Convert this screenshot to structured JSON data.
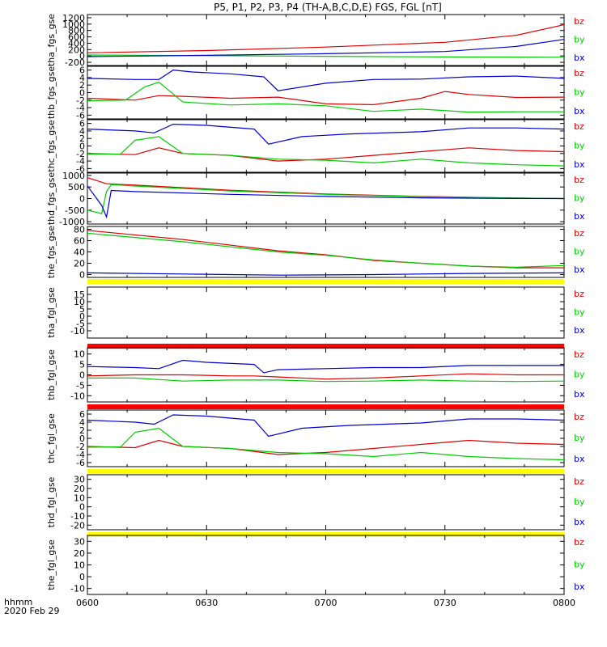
{
  "chart_data": {
    "type": "line",
    "title": "P5, P1, P2, P3, P4 (TH-A,B,C,D,E) FGS, FGL [nT]",
    "x_ticks": [
      "0600",
      "0630",
      "0700",
      "0730",
      "0800"
    ],
    "x_label_left": "hhmm",
    "date_label": "2020 Feb 29",
    "xlim": [
      "06:00",
      "08:00"
    ],
    "legend_colors": {
      "bz": "#dd0000",
      "by": "#00cc00",
      "bx": "#0000cc"
    },
    "panels": [
      {
        "ylabel": "tha_fgs_gse",
        "ylim": [
          -300,
          1300
        ],
        "y_ticks": [
          "1200",
          "1000",
          "800",
          "600",
          "400",
          "200",
          "0",
          "-200"
        ],
        "legend": [
          "bz",
          "by",
          "bx"
        ],
        "flag_bar": null,
        "series": [
          {
            "name": "bz",
            "color": "#dd0000",
            "x": [
              0,
              0.25,
              0.5,
              0.75,
              0.9,
              1.0
            ],
            "y": [
              100,
              170,
              280,
              430,
              650,
              980
            ]
          },
          {
            "name": "by",
            "color": "#00cc00",
            "x": [
              0,
              0.25,
              0.5,
              0.75,
              1.0
            ],
            "y": [
              30,
              10,
              -10,
              -30,
              -40
            ]
          },
          {
            "name": "bx",
            "color": "#0000cc",
            "x": [
              0,
              0.25,
              0.5,
              0.75,
              0.9,
              1.0
            ],
            "y": [
              -20,
              20,
              70,
              140,
              300,
              520
            ]
          }
        ]
      },
      {
        "ylabel": "thb_fgs_gse",
        "ylim": [
          -7,
          7
        ],
        "y_ticks": [
          "6",
          "4",
          "2",
          "0",
          "-2",
          "-4",
          "-6"
        ],
        "legend": [
          "bz",
          "by",
          "bx"
        ],
        "flag_bar": null,
        "series": [
          {
            "name": "bz",
            "color": "#dd0000",
            "x": [
              0,
              0.1,
              0.15,
              0.2,
              0.3,
              0.4,
              0.5,
              0.6,
              0.7,
              0.75,
              0.8,
              0.9,
              1.0
            ],
            "y": [
              -1.5,
              -2,
              -0.8,
              -1,
              -1.5,
              -1.2,
              -3,
              -3.2,
              -1.5,
              0.3,
              -0.5,
              -1.3,
              -1.2
            ]
          },
          {
            "name": "by",
            "color": "#00cc00",
            "x": [
              0,
              0.08,
              0.12,
              0.15,
              0.2,
              0.3,
              0.4,
              0.5,
              0.6,
              0.7,
              0.8,
              0.9,
              1.0
            ],
            "y": [
              -2.2,
              -2,
              1.5,
              2.8,
              -2.5,
              -3.3,
              -3,
              -3.5,
              -5,
              -4.4,
              -5.2,
              -5.1,
              -5.1
            ]
          },
          {
            "name": "bx",
            "color": "#0000cc",
            "x": [
              0,
              0.1,
              0.15,
              0.18,
              0.22,
              0.3,
              0.37,
              0.4,
              0.5,
              0.6,
              0.7,
              0.8,
              0.9,
              1.0
            ],
            "y": [
              3.8,
              3.5,
              3.5,
              6,
              5.5,
              5,
              4.2,
              0.5,
              2.5,
              3.5,
              3.6,
              4.2,
              4.4,
              3.8
            ]
          }
        ]
      },
      {
        "ylabel": "thc_fgs_gse",
        "ylim": [
          -7,
          7
        ],
        "y_ticks": [
          "6",
          "4",
          "2",
          "0",
          "-2",
          "-4",
          "-6"
        ],
        "legend": [
          "bz",
          "by",
          "bx"
        ],
        "flag_bar": null,
        "series": [
          {
            "name": "bz",
            "color": "#dd0000",
            "x": [
              0,
              0.1,
              0.15,
              0.2,
              0.3,
              0.4,
              0.5,
              0.6,
              0.7,
              0.8,
              0.9,
              1.0
            ],
            "y": [
              -2,
              -2.3,
              -0.5,
              -2,
              -2.5,
              -4,
              -3.5,
              -2.5,
              -1.5,
              -0.5,
              -1.2,
              -1.5
            ]
          },
          {
            "name": "by",
            "color": "#00cc00",
            "x": [
              0,
              0.07,
              0.1,
              0.15,
              0.2,
              0.3,
              0.4,
              0.5,
              0.6,
              0.7,
              0.8,
              0.9,
              1.0
            ],
            "y": [
              -2.2,
              -2.1,
              1.5,
              2.5,
              -2,
              -2.5,
              -3.5,
              -3.8,
              -4.5,
              -3.5,
              -4.5,
              -5,
              -5.3
            ]
          },
          {
            "name": "bx",
            "color": "#0000cc",
            "x": [
              0,
              0.1,
              0.14,
              0.18,
              0.25,
              0.35,
              0.38,
              0.45,
              0.55,
              0.7,
              0.8,
              0.9,
              1.0
            ],
            "y": [
              4.5,
              4,
              3.5,
              5.8,
              5.5,
              4.5,
              0.5,
              2.5,
              3.2,
              3.8,
              4.8,
              4.8,
              4.5
            ]
          }
        ]
      },
      {
        "ylabel": "thd_fgs_gse",
        "ylim": [
          -1100,
          1100
        ],
        "y_ticks": [
          "1000",
          "500",
          "0",
          "-500",
          "-1000"
        ],
        "legend": [
          "bz",
          "by",
          "bx"
        ],
        "flag_bar": null,
        "series": [
          {
            "name": "bz",
            "color": "#dd0000",
            "x": [
              0,
              0.04,
              0.1,
              0.3,
              0.5,
              0.7,
              0.9,
              1.0
            ],
            "y": [
              900,
              640,
              580,
              360,
              200,
              90,
              20,
              0
            ]
          },
          {
            "name": "by",
            "color": "#00cc00",
            "x": [
              0,
              0.03,
              0.04,
              0.05,
              0.1,
              0.3,
              0.5,
              0.7,
              0.9,
              1.0
            ],
            "y": [
              -500,
              -650,
              300,
              600,
              540,
              330,
              180,
              80,
              20,
              0
            ]
          },
          {
            "name": "bx",
            "color": "#0000cc",
            "x": [
              0,
              0.03,
              0.04,
              0.05,
              0.1,
              0.3,
              0.5,
              0.7,
              0.9,
              1.0
            ],
            "y": [
              550,
              -300,
              -800,
              350,
              300,
              180,
              90,
              30,
              5,
              0
            ]
          }
        ]
      },
      {
        "ylabel": "the_fgs_gse",
        "ylim": [
          -5,
          85
        ],
        "y_ticks": [
          "80",
          "60",
          "40",
          "20",
          "0"
        ],
        "legend": [
          "bz",
          "by",
          "bx"
        ],
        "flag_bar": {
          "color": "#ffff00",
          "spans": [
            [
              0,
              1
            ]
          ]
        },
        "series": [
          {
            "name": "bz",
            "color": "#dd0000",
            "x": [
              0,
              0.2,
              0.4,
              0.5,
              0.6,
              0.7,
              0.8,
              0.9,
              1.0
            ],
            "y": [
              78,
              62,
              42,
              35,
              25,
              20,
              15,
              12,
              12
            ]
          },
          {
            "name": "by",
            "color": "#00cc00",
            "x": [
              0,
              0.2,
              0.4,
              0.5,
              0.6,
              0.7,
              0.8,
              0.9,
              1.0
            ],
            "y": [
              73,
              58,
              40,
              34,
              26,
              20,
              15,
              13,
              16
            ]
          },
          {
            "name": "bx",
            "color": "#0000cc",
            "x": [
              0,
              0.2,
              0.4,
              0.6,
              0.8,
              1.0
            ],
            "y": [
              3,
              1,
              -1,
              0,
              2,
              3
            ]
          }
        ]
      },
      {
        "ylabel": "tha_fgl_gse",
        "ylim": [
          -15,
          20
        ],
        "y_ticks": [
          "15",
          "10",
          "5",
          "0",
          "-5",
          "-10"
        ],
        "legend": [
          "bz",
          "by",
          "bx"
        ],
        "flag_bar": {
          "color": "#ff0000",
          "spans": [
            [
              0,
              1
            ]
          ]
        },
        "series": []
      },
      {
        "ylabel": "thb_fgl_gse",
        "ylim": [
          -13,
          13
        ],
        "y_ticks": [
          "10",
          "5",
          "0",
          "-5",
          "-10"
        ],
        "legend": [
          "bz",
          "by",
          "bx"
        ],
        "flag_bar": {
          "color": "#ff0000",
          "spans": [
            [
              0,
              1
            ]
          ]
        },
        "series": [
          {
            "name": "bz",
            "color": "#dd0000",
            "x": [
              0,
              0.1,
              0.2,
              0.3,
              0.35,
              0.4,
              0.5,
              0.6,
              0.7,
              0.8,
              0.9,
              1.0
            ],
            "y": [
              -0.5,
              0,
              0,
              -0.5,
              -0.5,
              -1,
              -2,
              -1.5,
              -0.5,
              0.5,
              0,
              0
            ]
          },
          {
            "name": "by",
            "color": "#00cc00",
            "x": [
              0,
              0.1,
              0.2,
              0.3,
              0.35,
              0.4,
              0.5,
              0.6,
              0.7,
              0.8,
              0.9,
              1.0
            ],
            "y": [
              -1.5,
              -1.5,
              -3,
              -2.5,
              -2.5,
              -2.5,
              -3.2,
              -3,
              -2.5,
              -3,
              -3.2,
              -3
            ]
          },
          {
            "name": "bx",
            "color": "#0000cc",
            "x": [
              0,
              0.1,
              0.15,
              0.2,
              0.25,
              0.35,
              0.37,
              0.4,
              0.5,
              0.6,
              0.7,
              0.8,
              0.9,
              1.0
            ],
            "y": [
              4,
              3.5,
              3,
              7,
              6,
              5,
              1,
              2.5,
              3,
              3.5,
              3.5,
              4.5,
              4.5,
              4.5
            ]
          }
        ]
      },
      {
        "ylabel": "thc_fgl_gse",
        "ylim": [
          -7,
          7
        ],
        "y_ticks": [
          "6",
          "4",
          "2",
          "0",
          "-2",
          "-4",
          "-6"
        ],
        "legend": [
          "bz",
          "by",
          "bx"
        ],
        "flag_bar": {
          "color": "#ffff00",
          "spans": [
            [
              0,
              1
            ]
          ]
        },
        "series": [
          {
            "name": "bz",
            "color": "#dd0000",
            "x": [
              0,
              0.1,
              0.15,
              0.2,
              0.3,
              0.4,
              0.5,
              0.6,
              0.7,
              0.8,
              0.9,
              1.0
            ],
            "y": [
              -2,
              -2.3,
              -0.5,
              -2,
              -2.5,
              -4,
              -3.5,
              -2.5,
              -1.5,
              -0.5,
              -1.2,
              -1.5
            ]
          },
          {
            "name": "by",
            "color": "#00cc00",
            "x": [
              0,
              0.07,
              0.1,
              0.15,
              0.2,
              0.3,
              0.4,
              0.5,
              0.6,
              0.7,
              0.8,
              0.9,
              1.0
            ],
            "y": [
              -2.2,
              -2.1,
              1.5,
              2.5,
              -2,
              -2.5,
              -3.5,
              -3.8,
              -4.5,
              -3.5,
              -4.5,
              -5,
              -5.3
            ]
          },
          {
            "name": "bx",
            "color": "#0000cc",
            "x": [
              0,
              0.1,
              0.14,
              0.18,
              0.25,
              0.35,
              0.38,
              0.45,
              0.55,
              0.7,
              0.8,
              0.9,
              1.0
            ],
            "y": [
              4.5,
              4,
              3.5,
              5.8,
              5.5,
              4.5,
              0.5,
              2.5,
              3.2,
              3.8,
              4.8,
              4.8,
              4.5
            ]
          }
        ]
      },
      {
        "ylabel": "thd_fgl_gse",
        "ylim": [
          -25,
          35
        ],
        "y_ticks": [
          "30",
          "20",
          "10",
          "0",
          "-10",
          "-20"
        ],
        "legend": [
          "bz",
          "by",
          "bx"
        ],
        "flag_bar": {
          "color": "#ffff00",
          "spans": [
            [
              0,
              1
            ]
          ]
        },
        "series": []
      },
      {
        "ylabel": "the_fgl_gse",
        "ylim": [
          -15,
          35
        ],
        "y_ticks": [
          "30",
          "20",
          "10",
          "0",
          "-10"
        ],
        "legend": [
          "bz",
          "by",
          "bx"
        ],
        "flag_bar": null,
        "series": []
      }
    ]
  }
}
